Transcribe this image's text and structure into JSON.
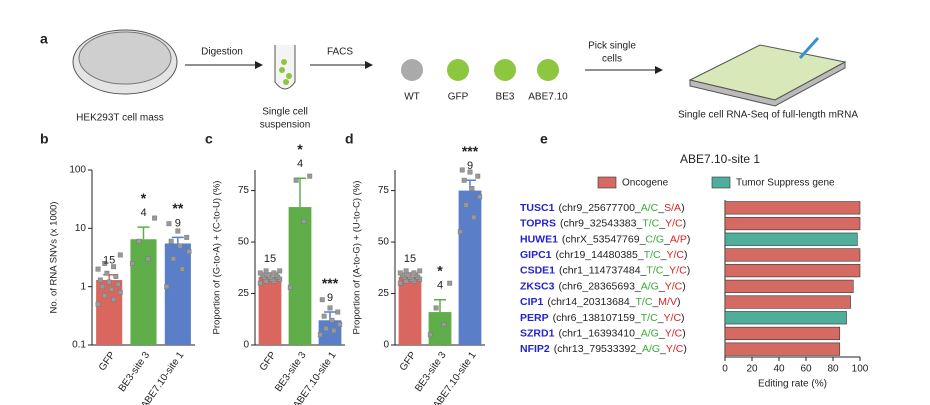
{
  "diagram": {
    "panel": "a",
    "source": "HEK293T cell mass",
    "step1": "Digestion",
    "suspension": [
      "Single cell",
      "suspension"
    ],
    "step2": "FACS",
    "groups": [
      "WT",
      "GFP",
      "BE3",
      "ABE7.10"
    ],
    "step3": [
      "Pick single",
      "cells"
    ],
    "result": "Single cell RNA-Seq of full-length mRNA"
  },
  "chart_data": [
    {
      "type": "bar",
      "panel": "b",
      "ylabel": "No. of RNA SNVs (x 1000)",
      "log_scale": true,
      "categories": [
        "GFP",
        "BE3-site 3",
        "ABE7.10-site 1"
      ],
      "colors": [
        "#d9675f",
        "#5fae4a",
        "#5a7fc8"
      ],
      "values": [
        1.3,
        6.5,
        5.5
      ],
      "errors": [
        0.3,
        4,
        1.5
      ],
      "points": [
        [
          0.5,
          0.6,
          0.7,
          0.8,
          0.9,
          1.0,
          1.1,
          1.2,
          1.3,
          1.5,
          1.7,
          2.0,
          2.2,
          2.5,
          3.5
        ],
        [
          2.5,
          3,
          6,
          15
        ],
        [
          1,
          2,
          3,
          4,
          5,
          6,
          7,
          9,
          12
        ]
      ],
      "n_labels": [
        "15",
        "4",
        "9"
      ],
      "significance": [
        null,
        "*",
        "**"
      ],
      "ylim": [
        0.1,
        100
      ],
      "yticks": [
        0.1,
        1,
        10,
        100
      ]
    },
    {
      "type": "bar",
      "panel": "c",
      "ylabel": "Proportion of (G-to-A) + (C-to-U) (%)",
      "categories": [
        "GFP",
        "BE3-site 3",
        "ABE7.10-site 1"
      ],
      "colors": [
        "#d9675f",
        "#5fae4a",
        "#5a7fc8"
      ],
      "values": [
        33,
        67,
        12
      ],
      "errors": [
        2,
        14,
        4
      ],
      "points": [
        [
          30,
          31,
          31,
          32,
          32,
          33,
          33,
          33,
          34,
          34,
          34,
          35,
          35,
          36,
          36
        ],
        [
          28,
          60,
          80,
          82
        ],
        [
          5,
          7,
          8,
          10,
          12,
          14,
          16,
          18,
          22
        ]
      ],
      "n_labels": [
        "15",
        "4",
        "9"
      ],
      "significance": [
        null,
        "*",
        "***"
      ],
      "ylim": [
        0,
        85
      ],
      "yticks": [
        0,
        25,
        50,
        75
      ]
    },
    {
      "type": "bar",
      "panel": "d",
      "ylabel": "Proportion of (A-to-G) + (U-to-C) (%)",
      "categories": [
        "GFP",
        "BE3-site 3",
        "ABE7.10-site 1"
      ],
      "colors": [
        "#d9675f",
        "#5fae4a",
        "#5a7fc8"
      ],
      "values": [
        33,
        16,
        75
      ],
      "errors": [
        2,
        6,
        5
      ],
      "points": [
        [
          30,
          31,
          31,
          32,
          32,
          33,
          33,
          33,
          34,
          34,
          34,
          35,
          35,
          36,
          36
        ],
        [
          5,
          10,
          18,
          30
        ],
        [
          55,
          62,
          68,
          72,
          76,
          80,
          82,
          84,
          85
        ]
      ],
      "n_labels": [
        "15",
        "4",
        "9"
      ],
      "significance": [
        null,
        "*",
        "***"
      ],
      "ylim": [
        0,
        85
      ],
      "yticks": [
        0,
        25,
        50,
        75
      ]
    },
    {
      "type": "hbar",
      "panel": "e",
      "title": "ABE7.10-site 1",
      "xlabel": "Editing rate (%)",
      "legend": [
        {
          "name": "Oncogene",
          "color": "#d46a62"
        },
        {
          "name": "Tumor Suppress gene",
          "color": "#4fae9a"
        }
      ],
      "rows": [
        {
          "gene": "TUSC1",
          "locus": "(chr9_25677700_",
          "base": "A/C",
          "aa": "S/A",
          "group": "Oncogene",
          "value": 100
        },
        {
          "gene": "TOPRS",
          "locus": "(chr9_32543383_",
          "base": "T/C",
          "aa": "Y/C",
          "group": "Oncogene",
          "value": 100
        },
        {
          "gene": "HUWE1",
          "locus": "(chrX_53547769_",
          "base": "C/G",
          "aa": "A/P",
          "group": "Tumor Suppress gene",
          "value": 98
        },
        {
          "gene": "GIPC1",
          "locus": "(chr19_14480385_",
          "base": "T/C",
          "aa": "Y/C",
          "group": "Oncogene",
          "value": 100
        },
        {
          "gene": "CSDE1",
          "locus": "(chr1_114737484_",
          "base": "T/C",
          "aa": "Y/C",
          "group": "Oncogene",
          "value": 100
        },
        {
          "gene": "ZKSC3",
          "locus": "(chr6_28365693_",
          "base": "A/G",
          "aa": "Y/C",
          "group": "Oncogene",
          "value": 95
        },
        {
          "gene": "CIP1",
          "locus": "(chr14_20313684_",
          "base": "T/C",
          "aa": "M/V",
          "group": "Oncogene",
          "value": 93
        },
        {
          "gene": "PERP",
          "locus": "(chr6_138107159_",
          "base": "T/C",
          "aa": "Y/C",
          "group": "Tumor Suppress gene",
          "value": 90
        },
        {
          "gene": "SZRD1",
          "locus": "(chr1_16393410_",
          "base": "A/G",
          "aa": "Y/C",
          "group": "Oncogene",
          "value": 85
        },
        {
          "gene": "NFIP2",
          "locus": "(chr13_79533392_",
          "base": "A/G",
          "aa": "Y/C",
          "group": "Oncogene",
          "value": 85
        }
      ],
      "xlim": [
        0,
        100
      ],
      "xticks": [
        0,
        20,
        40,
        60,
        80,
        100
      ]
    }
  ]
}
